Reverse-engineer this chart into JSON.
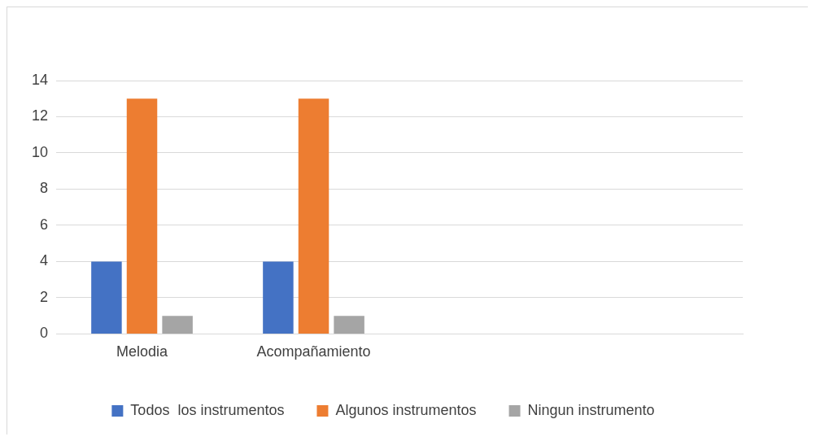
{
  "chart_data": {
    "type": "bar",
    "categories": [
      "Melodia",
      "Acompañamiento",
      null,
      null
    ],
    "series": [
      {
        "name": "Todos  los instrumentos",
        "color": "#4472c4",
        "values": [
          4,
          4,
          null,
          null
        ]
      },
      {
        "name": "Algunos instrumentos",
        "color": "#ed7d31",
        "values": [
          13,
          13,
          null,
          null
        ]
      },
      {
        "name": "Ningun instrumento",
        "color": "#a5a5a5",
        "values": [
          1,
          1,
          null,
          null
        ]
      }
    ],
    "ylim": [
      0,
      14
    ],
    "yticks": [
      0,
      2,
      4,
      6,
      8,
      10,
      12,
      14
    ],
    "grid": "y",
    "legend": "bottom"
  }
}
